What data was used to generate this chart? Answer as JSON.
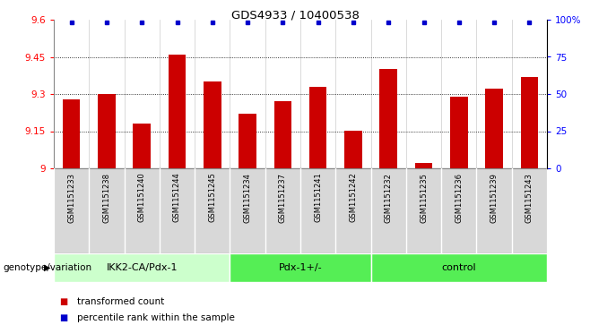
{
  "title": "GDS4933 / 10400538",
  "samples": [
    "GSM1151233",
    "GSM1151238",
    "GSM1151240",
    "GSM1151244",
    "GSM1151245",
    "GSM1151234",
    "GSM1151237",
    "GSM1151241",
    "GSM1151242",
    "GSM1151232",
    "GSM1151235",
    "GSM1151236",
    "GSM1151239",
    "GSM1151243"
  ],
  "bar_values": [
    9.28,
    9.3,
    9.18,
    9.46,
    9.35,
    9.22,
    9.27,
    9.33,
    9.15,
    9.4,
    9.02,
    9.29,
    9.32,
    9.37
  ],
  "percentile_pct": 98,
  "ylim_left": [
    9.0,
    9.6
  ],
  "ylim_right": [
    0,
    100
  ],
  "yticks_left": [
    9.0,
    9.15,
    9.3,
    9.45,
    9.6
  ],
  "ytick_labels_left": [
    "9",
    "9.15",
    "9.3",
    "9.45",
    "9.6"
  ],
  "yticks_right": [
    0,
    25,
    50,
    75,
    100
  ],
  "ytick_labels_right": [
    "0",
    "25",
    "50",
    "75",
    "100%"
  ],
  "hlines": [
    9.15,
    9.3,
    9.45
  ],
  "bar_color": "#cc0000",
  "dot_color": "#0000cc",
  "groups": [
    {
      "label": "IKK2-CA/Pdx-1",
      "start": 0,
      "end": 5,
      "color": "#ccffcc"
    },
    {
      "label": "Pdx-1+/-",
      "start": 5,
      "end": 9,
      "color": "#55ee55"
    },
    {
      "label": "control",
      "start": 9,
      "end": 14,
      "color": "#55ee55"
    }
  ],
  "xlabel_genotype": "genotype/variation",
  "legend_bar_label": "transformed count",
  "legend_dot_label": "percentile rank within the sample",
  "tick_bg_color": "#d8d8d8",
  "plot_border_color": "#888888"
}
